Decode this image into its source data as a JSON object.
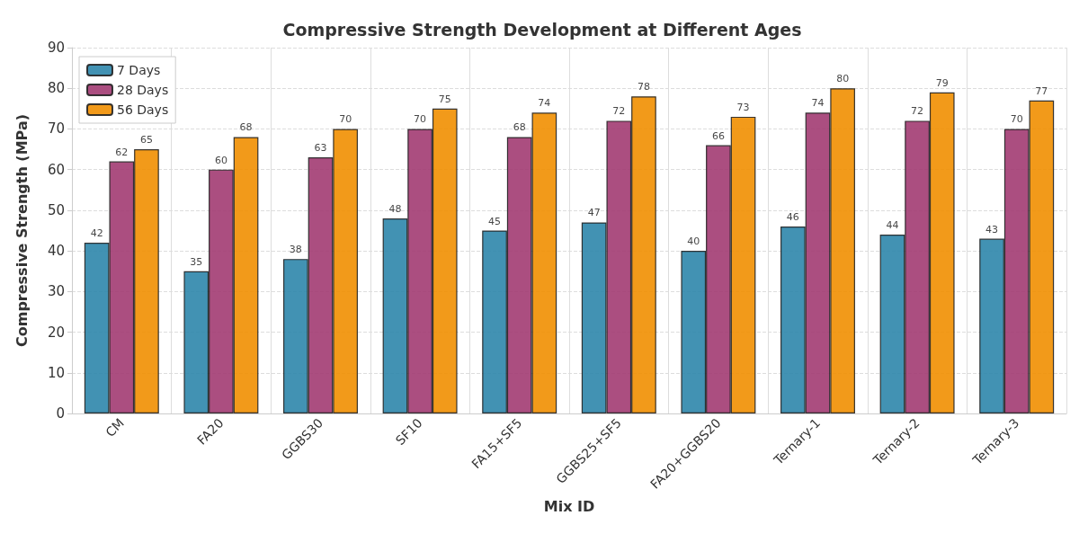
{
  "chart_data": {
    "type": "bar",
    "title": "Compressive Strength Development at Different Ages",
    "xlabel": "Mix ID",
    "ylabel": "Compressive Strength (MPa)",
    "categories": [
      "CM",
      "FA20",
      "GGBS30",
      "SF10",
      "FA15+SF5",
      "GGBS25+SF5",
      "FA20+GGBS20",
      "Ternary-1",
      "Ternary-2",
      "Ternary-3"
    ],
    "series": [
      {
        "name": "7 Days",
        "color": "#2e86ab",
        "values": [
          42,
          35,
          38,
          48,
          45,
          47,
          40,
          46,
          44,
          43
        ]
      },
      {
        "name": "28 Days",
        "color": "#a23b72",
        "values": [
          62,
          60,
          63,
          70,
          68,
          72,
          66,
          74,
          72,
          70
        ]
      },
      {
        "name": "56 Days",
        "color": "#f18f01",
        "values": [
          65,
          68,
          70,
          75,
          74,
          78,
          73,
          80,
          79,
          77
        ]
      }
    ],
    "ylim": [
      0,
      90
    ],
    "yticks": [
      0,
      10,
      20,
      30,
      40,
      50,
      60,
      70,
      80,
      90
    ],
    "grid": true,
    "legend": "top left",
    "data_labels": true
  }
}
